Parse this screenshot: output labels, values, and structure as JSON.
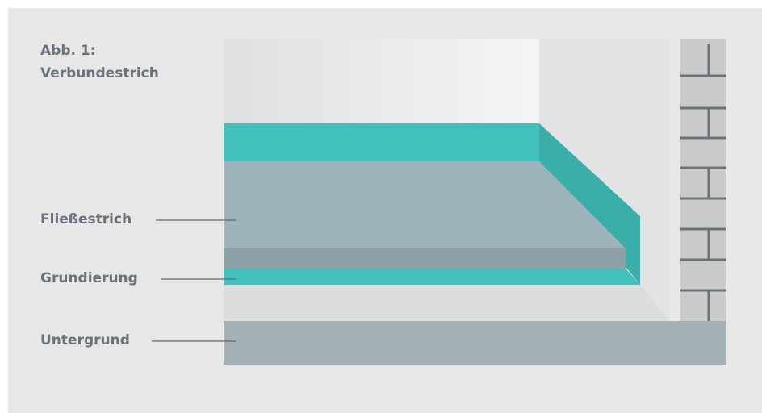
{
  "title": {
    "line1": "Abb. 1:",
    "line2": "Verbundestrich"
  },
  "labels": [
    "Fließestrich",
    "Grundierung",
    "Untergrund"
  ]
}
